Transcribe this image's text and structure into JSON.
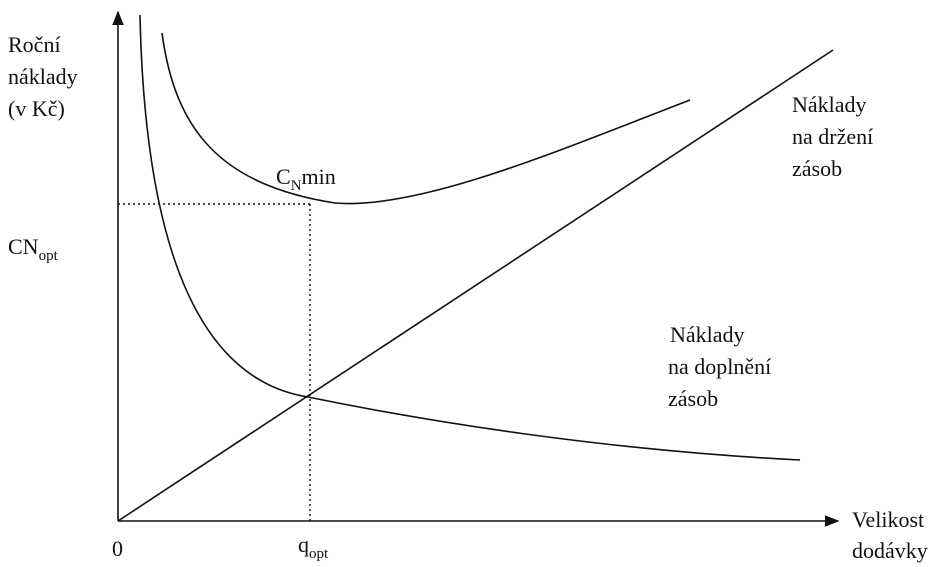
{
  "y_axis_label": {
    "lines": [
      "Roční",
      "náklady",
      "(v Kč)"
    ]
  },
  "x_axis_label": {
    "lines": [
      "Velikost",
      "dodávky"
    ]
  },
  "origin": "0",
  "cn_opt": {
    "base": "CN",
    "sub": "opt"
  },
  "cn_min": {
    "base": "C",
    "sub": "N",
    "suffix": "min"
  },
  "q_opt": {
    "base": "q",
    "sub": "opt"
  },
  "holding_cost_label": {
    "lines": [
      "Náklady",
      "na držení",
      "zásob"
    ]
  },
  "ordering_cost_label": {
    "lines": [
      "Náklady",
      "na doplnění",
      "zásob"
    ]
  }
}
